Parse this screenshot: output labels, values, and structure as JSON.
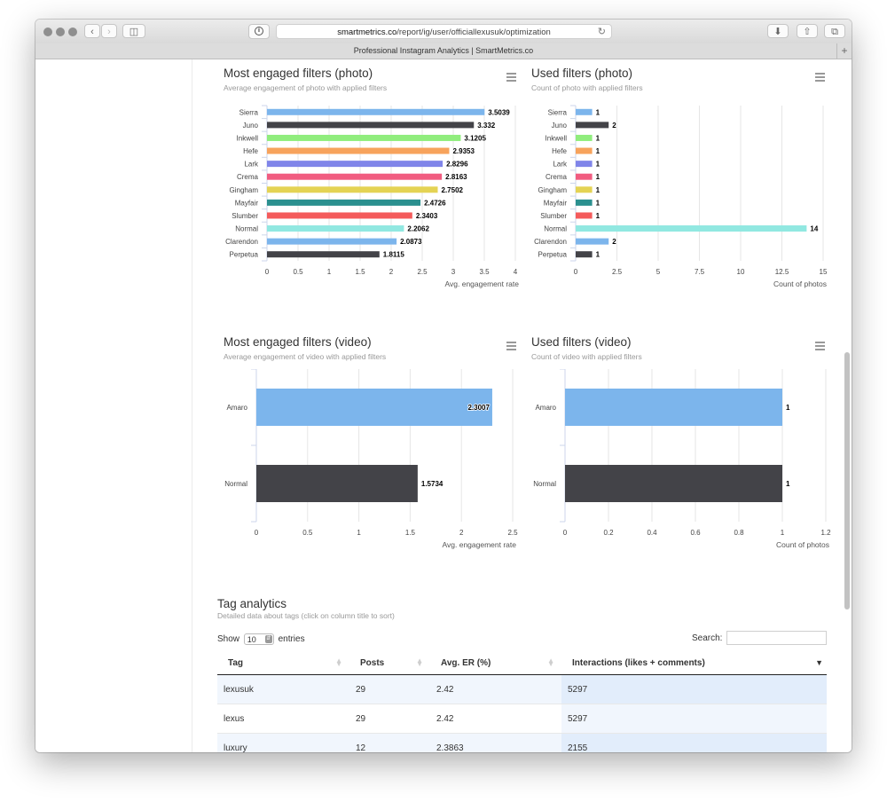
{
  "browser": {
    "url_host": "smartmetrics.co",
    "url_path": "/report/ig/user/officiallexusuk/optimization",
    "tab_title": "Professional Instagram Analytics | SmartMetrics.co"
  },
  "charts": [
    {
      "title": "Most engaged filters (photo)",
      "subtitle": "Average engagement of photo with applied filters",
      "xlabel": "Avg. engagement rate",
      "ticks": [
        "0",
        "0.5",
        "1",
        "1.5",
        "2",
        "2.5",
        "3",
        "3.5",
        "4"
      ],
      "xmax": 4
    },
    {
      "title": "Used filters (photo)",
      "subtitle": "Count of photo with applied filters",
      "xlabel": "Count of photos",
      "ticks": [
        "0",
        "2.5",
        "5",
        "7.5",
        "10",
        "12.5",
        "15"
      ],
      "xmax": 15
    },
    {
      "title": "Most engaged filters (video)",
      "subtitle": "Average engagement of video with applied filters",
      "xlabel": "Avg. engagement rate",
      "ticks": [
        "0",
        "0.5",
        "1",
        "1.5",
        "2",
        "2.5"
      ],
      "xmax": 2.5
    },
    {
      "title": "Used filters (video)",
      "subtitle": "Count of video with applied filters",
      "xlabel": "Count of photos",
      "ticks": [
        "0",
        "0.2",
        "0.4",
        "0.6",
        "0.8",
        "1",
        "1.2"
      ],
      "xmax": 1.2
    }
  ],
  "chart_data": [
    {
      "type": "bar",
      "orientation": "horizontal",
      "title": "Most engaged filters (photo)",
      "xlabel": "Avg. engagement rate",
      "xlim": [
        0,
        4
      ],
      "categories": [
        "Sierra",
        "Juno",
        "Inkwell",
        "Hefe",
        "Lark",
        "Crema",
        "Gingham",
        "Mayfair",
        "Slumber",
        "Normal",
        "Clarendon",
        "Perpetua"
      ],
      "values": [
        3.5039,
        3.332,
        3.1205,
        2.9353,
        2.8296,
        2.8163,
        2.7502,
        2.4726,
        2.3403,
        2.2062,
        2.0873,
        1.8115
      ],
      "labels": [
        "3.5039",
        "3.332",
        "3.1205",
        "2.9353",
        "2.8296",
        "2.8163",
        "2.7502",
        "2.4726",
        "2.3403",
        "2.2062",
        "2.0873",
        "1.8115"
      ],
      "colors": [
        "#7cb5ec",
        "#434348",
        "#90ed7d",
        "#f7a35c",
        "#8085e9",
        "#f15c80",
        "#e4d354",
        "#2b908f",
        "#f45b5b",
        "#91e8e1",
        "#7cb5ec",
        "#434348"
      ]
    },
    {
      "type": "bar",
      "orientation": "horizontal",
      "title": "Used filters (photo)",
      "xlabel": "Count of photos",
      "xlim": [
        0,
        15
      ],
      "categories": [
        "Sierra",
        "Juno",
        "Inkwell",
        "Hefe",
        "Lark",
        "Crema",
        "Gingham",
        "Mayfair",
        "Slumber",
        "Normal",
        "Clarendon",
        "Perpetua"
      ],
      "values": [
        1,
        2,
        1,
        1,
        1,
        1,
        1,
        1,
        1,
        14,
        2,
        1
      ],
      "labels": [
        "1",
        "2",
        "1",
        "1",
        "1",
        "1",
        "1",
        "1",
        "1",
        "14",
        "2",
        "1"
      ],
      "colors": [
        "#7cb5ec",
        "#434348",
        "#90ed7d",
        "#f7a35c",
        "#8085e9",
        "#f15c80",
        "#e4d354",
        "#2b908f",
        "#f45b5b",
        "#91e8e1",
        "#7cb5ec",
        "#434348"
      ]
    },
    {
      "type": "bar",
      "orientation": "horizontal",
      "title": "Most engaged filters (video)",
      "xlabel": "Avg. engagement rate",
      "xlim": [
        0,
        2.5
      ],
      "categories": [
        "Amaro",
        "Normal"
      ],
      "values": [
        2.3007,
        1.5734
      ],
      "labels": [
        "2.3007",
        "1.5734"
      ],
      "colors": [
        "#7cb5ec",
        "#434348"
      ]
    },
    {
      "type": "bar",
      "orientation": "horizontal",
      "title": "Used filters (video)",
      "xlabel": "Count of photos",
      "xlim": [
        0,
        1.2
      ],
      "categories": [
        "Amaro",
        "Normal"
      ],
      "values": [
        1,
        1
      ],
      "labels": [
        "1",
        "1"
      ],
      "colors": [
        "#7cb5ec",
        "#434348"
      ]
    }
  ],
  "tags": {
    "title": "Tag analytics",
    "subtitle": "Detailed data about tags (click on column title to sort)",
    "show_label": "Show",
    "show_value": "10",
    "entries_label": "entries",
    "search_label": "Search:",
    "columns": [
      "Tag",
      "Posts",
      "Avg. ER (%)",
      "Interactions (likes + comments)"
    ],
    "rows": [
      [
        "lexusuk",
        "29",
        "2.42",
        "5297"
      ],
      [
        "lexus",
        "29",
        "2.42",
        "5297"
      ],
      [
        "luxury",
        "12",
        "2.3863",
        "2155"
      ]
    ]
  }
}
